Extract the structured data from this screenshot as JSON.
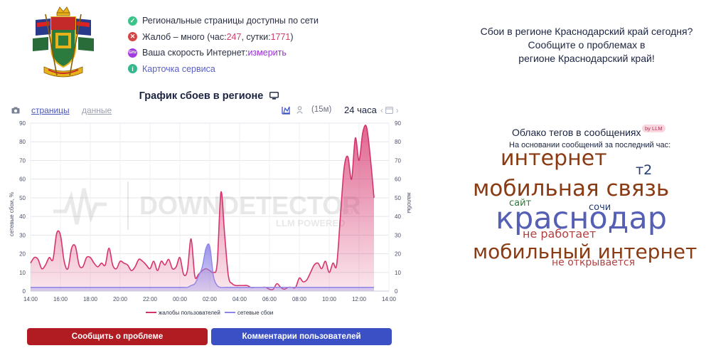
{
  "status": {
    "pages_available": "Региональные страницы доступны по сети",
    "complaints_prefix": "Жалоб – много (час: ",
    "complaints_hour": "247",
    "complaints_mid": ", сутки: ",
    "complaints_day": "1771",
    "complaints_suffix": ")",
    "speed_label": "Ваша скорость Интернет: ",
    "speed_link": "измерить",
    "speed_badge": "GHz",
    "service_card": "Карточка сервиса"
  },
  "chart_header": {
    "title": "График сбоев в регионе",
    "tab_pages": "страницы",
    "tab_data": "данные",
    "interval": "(15м)",
    "period": "24 часа"
  },
  "chart_data": {
    "type": "area",
    "x": [
      "14:00",
      "14:15",
      "14:30",
      "14:45",
      "15:00",
      "15:15",
      "15:30",
      "15:45",
      "16:00",
      "16:15",
      "16:30",
      "16:45",
      "17:00",
      "17:15",
      "17:30",
      "17:45",
      "18:00",
      "18:15",
      "18:30",
      "18:45",
      "19:00",
      "19:15",
      "19:30",
      "19:45",
      "20:00",
      "20:15",
      "20:30",
      "20:45",
      "21:00",
      "21:15",
      "21:30",
      "21:45",
      "22:00",
      "22:15",
      "22:30",
      "22:45",
      "23:00",
      "23:15",
      "23:30",
      "23:45",
      "00:00",
      "00:15",
      "00:30",
      "00:45",
      "01:00",
      "01:15",
      "01:30",
      "01:45",
      "02:00",
      "02:15",
      "02:30",
      "02:45",
      "03:00",
      "03:15",
      "03:30",
      "03:45",
      "04:00",
      "04:15",
      "04:30",
      "04:45",
      "05:00",
      "05:15",
      "05:30",
      "05:45",
      "06:00",
      "06:15",
      "06:30",
      "06:45",
      "07:00",
      "07:15",
      "07:30",
      "07:45",
      "08:00",
      "08:15",
      "08:30",
      "08:45",
      "09:00",
      "09:15",
      "09:30",
      "09:45",
      "10:00",
      "10:15",
      "10:30",
      "10:45",
      "11:00",
      "11:15",
      "11:30",
      "11:45",
      "12:00",
      "12:15",
      "12:30",
      "12:45",
      "13:00"
    ],
    "series": [
      {
        "name": "жалобы пользователей",
        "color": "#d6336c",
        "values": [
          15,
          18,
          17,
          12,
          14,
          18,
          17,
          31,
          30,
          16,
          12,
          23,
          24,
          14,
          13,
          18,
          18,
          15,
          13,
          15,
          14,
          23,
          14,
          12,
          16,
          15,
          14,
          11,
          13,
          17,
          16,
          14,
          12,
          16,
          11,
          16,
          14,
          17,
          12,
          13,
          18,
          9,
          11,
          28,
          8,
          9,
          11,
          12,
          11,
          10,
          15,
          53,
          30,
          8,
          4,
          3,
          3,
          3,
          3,
          2,
          2,
          2,
          2,
          2,
          1,
          1,
          4,
          2,
          1,
          2,
          2,
          2,
          7,
          5,
          6,
          10,
          14,
          15,
          12,
          16,
          10,
          15,
          14,
          40,
          66,
          72,
          60,
          82,
          70,
          85,
          88,
          72,
          50
        ]
      },
      {
        "name": "сетевые сбои",
        "color": "#8f86e8",
        "values": [
          2,
          2,
          2,
          2,
          2,
          2,
          2,
          2,
          2,
          2,
          2,
          2,
          2,
          2,
          2,
          2,
          2,
          2,
          2,
          2,
          2,
          2,
          2,
          2,
          2,
          2,
          2,
          2,
          2,
          2,
          2,
          2,
          2,
          2,
          2,
          2,
          2,
          2,
          2,
          2,
          2,
          2,
          2,
          3,
          4,
          8,
          13,
          23,
          24,
          8,
          3,
          2,
          2,
          2,
          2,
          2,
          2,
          2,
          2,
          2,
          2,
          2,
          2,
          2,
          2,
          2,
          2,
          2,
          2,
          2,
          2,
          2,
          2,
          2,
          2,
          2,
          2,
          2,
          2,
          2,
          2,
          2,
          2,
          2,
          2,
          2,
          2,
          2,
          2,
          2,
          2,
          2,
          2
        ]
      }
    ],
    "x_ticks": [
      "14:00",
      "16:00",
      "18:00",
      "20:00",
      "22:00",
      "00:00",
      "02:00",
      "04:00",
      "06:00",
      "08:00",
      "10:00",
      "12:00",
      "14:00"
    ],
    "ylim": [
      0,
      90
    ],
    "y_ticks": [
      0,
      10,
      20,
      30,
      40,
      50,
      60,
      70,
      80,
      90
    ],
    "ylabel_left": "сетевые сбои, %",
    "ylabel_right": "жалобы",
    "watermark_main": "DOWNDETECTOR",
    "watermark_sub": "LLM POWERED",
    "watermark_info": ".info",
    "legend_position": "bottom-center",
    "grid": true
  },
  "buttons": {
    "report": "Сообщить о проблеме",
    "comments": "Комментарии пользователей"
  },
  "right": {
    "line1": "Сбои в регионе Краснодарский край сегодня?",
    "line2": "Сообщите о проблемах в",
    "line3": "регионе Краснодарский край!"
  },
  "tag_cloud": {
    "title": "Облако тегов в сообщениях",
    "badge": "by LLM",
    "subtitle": "На основании сообщений за последний час:",
    "tags": {
      "internet": "интернет",
      "t2": "т2",
      "mobile_connection": "мобильная связь",
      "site": "сайт",
      "sochi": "сочи",
      "krasnodar": "краснодар",
      "not_working": "не работает",
      "mobile_internet": "мобильный интернет",
      "not_opening": "не открывается"
    }
  },
  "colors": {
    "complaints": "#d6336c",
    "network": "#8f86e8",
    "report_button": "#b01c22",
    "comments_button": "#3c50c5"
  }
}
